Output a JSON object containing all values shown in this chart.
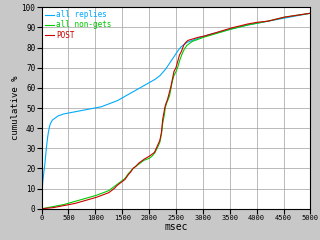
{
  "title": "",
  "xlabel": "msec",
  "ylabel": "cumulative %",
  "xlim": [
    0,
    5000
  ],
  "ylim": [
    0,
    100
  ],
  "xticks": [
    0,
    500,
    1000,
    1500,
    2000,
    2500,
    3000,
    3500,
    4000,
    4500,
    5000
  ],
  "yticks": [
    0,
    10,
    20,
    30,
    40,
    50,
    60,
    70,
    80,
    90,
    100
  ],
  "bg_color": "#c8c8c8",
  "plot_bg_color": "#ffffff",
  "grid_color": "#a0a0a0",
  "legend": {
    "labels": [
      "all replies",
      "all non-gets",
      "POST"
    ],
    "colors": [
      "#00aaff",
      "#00cc00",
      "#cc0000"
    ]
  },
  "line_width": 0.8,
  "all_replies": [
    [
      0,
      6
    ],
    [
      20,
      13
    ],
    [
      40,
      18
    ],
    [
      60,
      22
    ],
    [
      80,
      28
    ],
    [
      100,
      33
    ],
    [
      120,
      37
    ],
    [
      140,
      40
    ],
    [
      160,
      42
    ],
    [
      180,
      43
    ],
    [
      200,
      44
    ],
    [
      250,
      45
    ],
    [
      300,
      46
    ],
    [
      350,
      46.5
    ],
    [
      400,
      47
    ],
    [
      500,
      47.5
    ],
    [
      600,
      48
    ],
    [
      700,
      48.5
    ],
    [
      800,
      49
    ],
    [
      900,
      49.5
    ],
    [
      1000,
      50
    ],
    [
      1100,
      50.5
    ],
    [
      1200,
      51.5
    ],
    [
      1300,
      52.5
    ],
    [
      1400,
      53.5
    ],
    [
      1500,
      55
    ],
    [
      1600,
      56.5
    ],
    [
      1700,
      58
    ],
    [
      1800,
      59.5
    ],
    [
      1900,
      61
    ],
    [
      2000,
      62.5
    ],
    [
      2100,
      64
    ],
    [
      2200,
      66
    ],
    [
      2300,
      69
    ],
    [
      2350,
      71
    ],
    [
      2400,
      73
    ],
    [
      2450,
      75
    ],
    [
      2500,
      77
    ],
    [
      2550,
      79
    ],
    [
      2600,
      80.5
    ],
    [
      2650,
      81.5
    ],
    [
      2700,
      82.5
    ],
    [
      2800,
      83.5
    ],
    [
      2900,
      84.5
    ],
    [
      3000,
      85.5
    ],
    [
      3200,
      87
    ],
    [
      3500,
      89
    ],
    [
      3800,
      91
    ],
    [
      4000,
      92
    ],
    [
      4200,
      93
    ],
    [
      4500,
      94.5
    ],
    [
      5000,
      97
    ]
  ],
  "all_nongets": [
    [
      0,
      0
    ],
    [
      200,
      1
    ],
    [
      400,
      2
    ],
    [
      600,
      3.5
    ],
    [
      800,
      5
    ],
    [
      1000,
      6.5
    ],
    [
      1100,
      7.5
    ],
    [
      1200,
      8.5
    ],
    [
      1250,
      9
    ],
    [
      1300,
      10
    ],
    [
      1350,
      11
    ],
    [
      1400,
      12
    ],
    [
      1450,
      13
    ],
    [
      1500,
      14
    ],
    [
      1550,
      15
    ],
    [
      1600,
      17
    ],
    [
      1650,
      18.5
    ],
    [
      1700,
      20
    ],
    [
      1750,
      21
    ],
    [
      1800,
      22
    ],
    [
      1900,
      24
    ],
    [
      2000,
      25
    ],
    [
      2050,
      26
    ],
    [
      2100,
      27.5
    ],
    [
      2150,
      30
    ],
    [
      2200,
      33
    ],
    [
      2230,
      37
    ],
    [
      2250,
      42
    ],
    [
      2280,
      46
    ],
    [
      2300,
      50
    ],
    [
      2320,
      52
    ],
    [
      2350,
      54
    ],
    [
      2380,
      56
    ],
    [
      2400,
      59
    ],
    [
      2430,
      63
    ],
    [
      2460,
      66
    ],
    [
      2500,
      68
    ],
    [
      2530,
      70
    ],
    [
      2560,
      73
    ],
    [
      2600,
      76
    ],
    [
      2650,
      79
    ],
    [
      2700,
      81
    ],
    [
      2750,
      82
    ],
    [
      2800,
      83
    ],
    [
      2900,
      84
    ],
    [
      3000,
      85
    ],
    [
      3200,
      86.5
    ],
    [
      3500,
      89
    ],
    [
      3800,
      91
    ],
    [
      4000,
      92
    ],
    [
      4200,
      93
    ],
    [
      4500,
      95
    ],
    [
      5000,
      97
    ]
  ],
  "post": [
    [
      0,
      0
    ],
    [
      200,
      0.5
    ],
    [
      400,
      1.5
    ],
    [
      600,
      2.5
    ],
    [
      800,
      4
    ],
    [
      1000,
      5.5
    ],
    [
      1100,
      6.5
    ],
    [
      1200,
      7.5
    ],
    [
      1250,
      8
    ],
    [
      1300,
      9
    ],
    [
      1350,
      10
    ],
    [
      1400,
      11.5
    ],
    [
      1450,
      12.5
    ],
    [
      1500,
      13.5
    ],
    [
      1550,
      14.5
    ],
    [
      1600,
      16.5
    ],
    [
      1650,
      18
    ],
    [
      1700,
      20
    ],
    [
      1750,
      21
    ],
    [
      1800,
      22.5
    ],
    [
      1900,
      24.5
    ],
    [
      2000,
      26
    ],
    [
      2050,
      27
    ],
    [
      2100,
      28
    ],
    [
      2150,
      31
    ],
    [
      2200,
      34
    ],
    [
      2230,
      38
    ],
    [
      2250,
      44
    ],
    [
      2270,
      47
    ],
    [
      2290,
      50
    ],
    [
      2310,
      52
    ],
    [
      2340,
      54
    ],
    [
      2370,
      57
    ],
    [
      2400,
      60
    ],
    [
      2430,
      64
    ],
    [
      2460,
      68
    ],
    [
      2500,
      70
    ],
    [
      2530,
      73
    ],
    [
      2560,
      76
    ],
    [
      2600,
      78
    ],
    [
      2640,
      81
    ],
    [
      2680,
      82.5
    ],
    [
      2720,
      83.5
    ],
    [
      2780,
      84
    ],
    [
      2900,
      85
    ],
    [
      3000,
      85.5
    ],
    [
      3200,
      87
    ],
    [
      3500,
      89.5
    ],
    [
      3800,
      91.5
    ],
    [
      4000,
      92.5
    ],
    [
      4200,
      93
    ],
    [
      4500,
      95
    ],
    [
      5000,
      97
    ]
  ]
}
